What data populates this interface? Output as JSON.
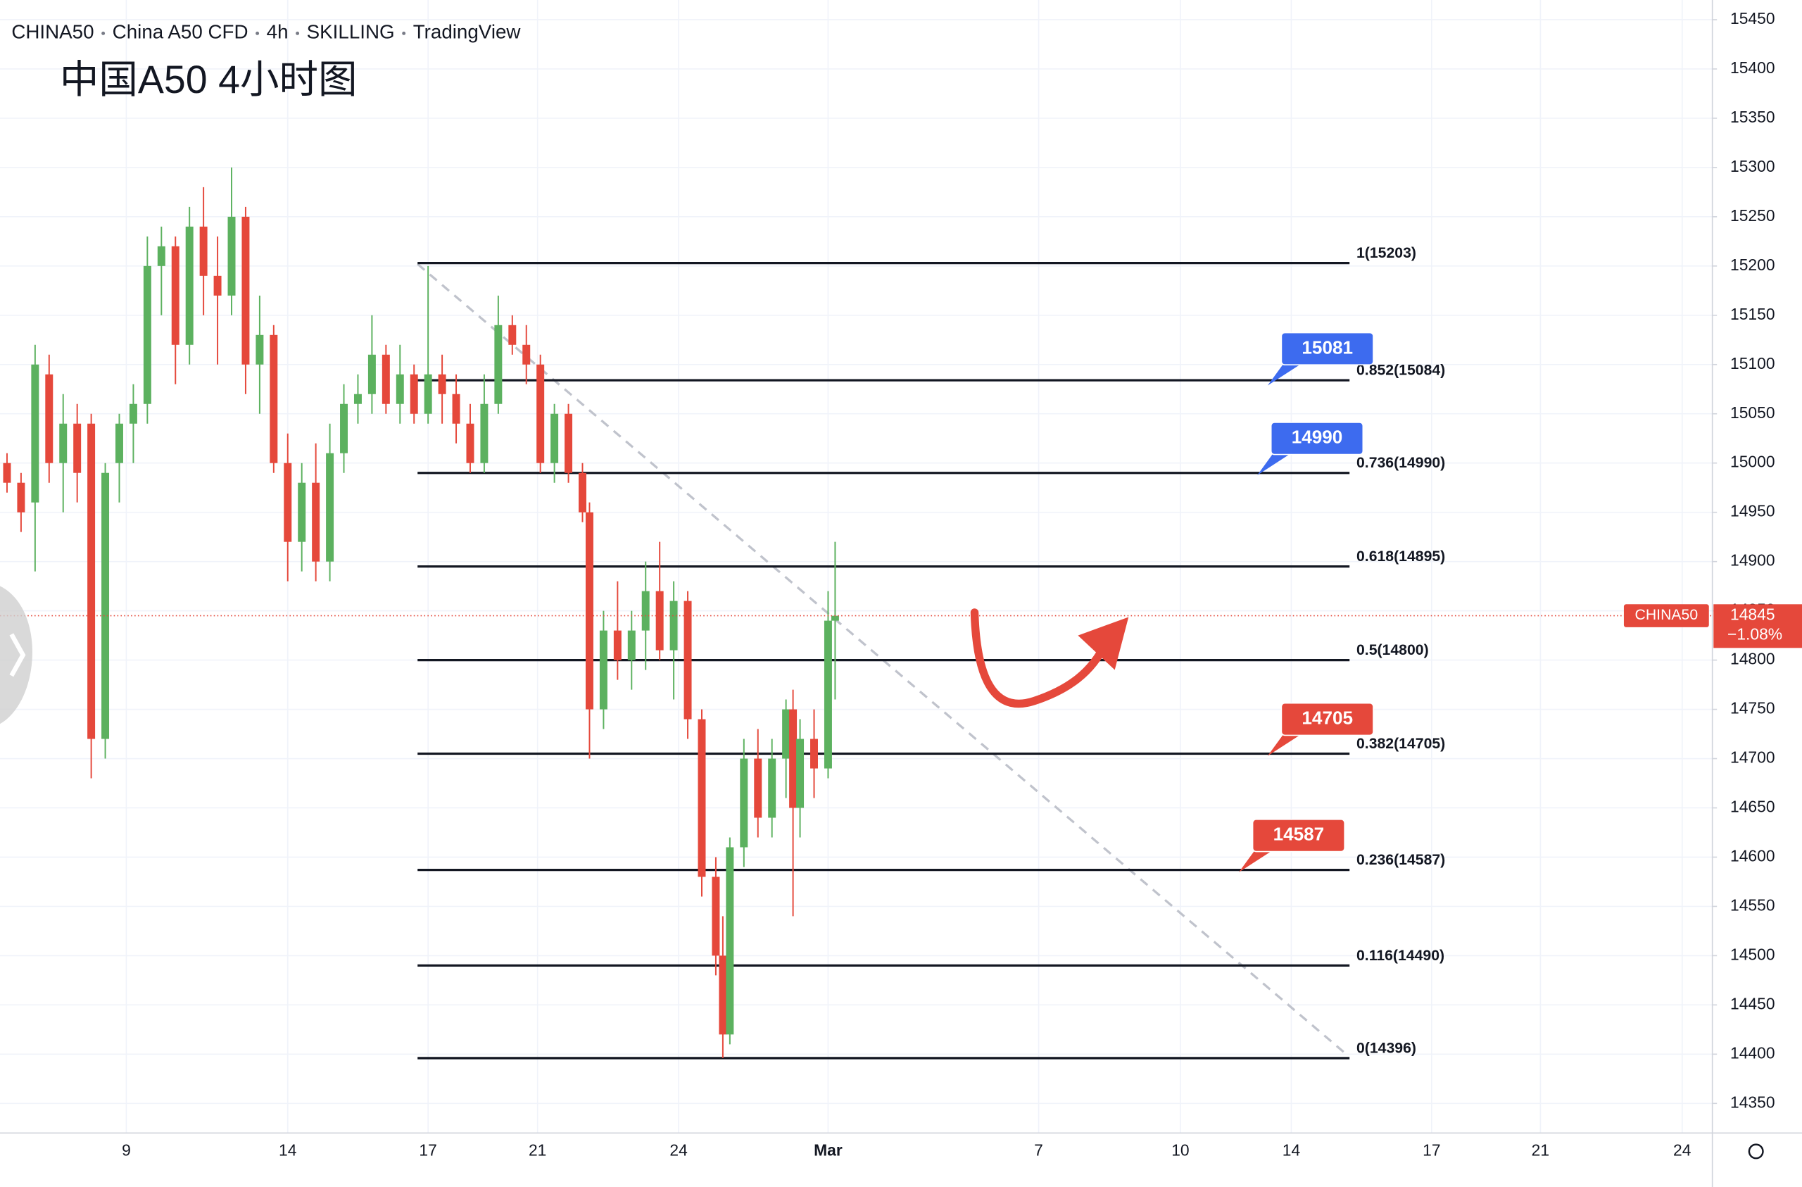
{
  "chart_data": {
    "type": "candlestick",
    "header": [
      "CHINA50",
      "China A50 CFD",
      "4h",
      "SKILLING",
      "TradingView"
    ],
    "title": "中国A50 4小时图",
    "symbol": "CHINA50",
    "last_price": 14845,
    "change_label": "−1.08%",
    "up_color": "#5cb15f",
    "down_color": "#e5483b",
    "xlim": [
      0,
      244
    ],
    "xticks": [
      {
        "value": 18,
        "label": "9"
      },
      {
        "value": 41,
        "label": "14"
      },
      {
        "value": 61,
        "label": "17"
      },
      {
        "value": 76.6,
        "label": "21"
      },
      {
        "value": 96.7,
        "label": "24"
      },
      {
        "value": 118,
        "label": "Mar"
      },
      {
        "value": 148,
        "label": "7"
      },
      {
        "value": 168.2,
        "label": "10"
      },
      {
        "value": 184,
        "label": "14"
      },
      {
        "value": 204,
        "label": "17"
      },
      {
        "value": 219.5,
        "label": "21"
      },
      {
        "value": 239.7,
        "label": "24"
      }
    ],
    "ylim": [
      14320,
      15470
    ],
    "yticks": [
      14350,
      14400,
      14450,
      14500,
      14550,
      14600,
      14650,
      14700,
      14750,
      14800,
      14850,
      14900,
      14950,
      15000,
      15050,
      15100,
      15150,
      15200,
      15250,
      15300,
      15350,
      15400,
      15450
    ],
    "grid": true,
    "x": [
      1,
      3,
      5,
      7,
      9,
      11,
      13,
      15,
      17,
      19,
      21,
      23,
      25,
      27,
      29,
      31,
      33,
      35,
      37,
      39,
      41,
      43,
      45,
      47,
      49,
      51,
      53,
      55,
      57,
      59,
      61,
      63,
      65,
      67,
      69,
      71,
      73,
      75,
      77,
      79,
      81,
      83,
      84,
      86,
      88,
      90,
      92,
      94,
      96,
      98,
      100,
      102,
      103,
      104,
      106,
      108,
      110,
      112,
      113,
      114,
      116,
      118,
      119
    ],
    "open": [
      15000,
      14980,
      14960,
      15090,
      15000,
      15040,
      15040,
      14720,
      15000,
      15040,
      15060,
      15200,
      15220,
      15120,
      15240,
      15190,
      15170,
      15250,
      15100,
      15130,
      15000,
      14920,
      14980,
      14900,
      15010,
      15060,
      15070,
      15110,
      15060,
      15090,
      15050,
      15090,
      15070,
      15040,
      15000,
      15060,
      15140,
      15120,
      15100,
      15000,
      15050,
      14990,
      14950,
      14750,
      14830,
      14800,
      14830,
      14870,
      14810,
      14860,
      14740,
      14580,
      14500,
      14420,
      14610,
      14700,
      14640,
      14700,
      14750,
      14650,
      14720,
      14690,
      14840
    ],
    "high": [
      15010,
      14990,
      15120,
      15110,
      15070,
      15060,
      15050,
      15000,
      15050,
      15080,
      15230,
      15240,
      15230,
      15260,
      15280,
      15230,
      15300,
      15260,
      15170,
      15140,
      15030,
      15000,
      15020,
      15040,
      15080,
      15090,
      15150,
      15120,
      15120,
      15100,
      15200,
      15110,
      15090,
      15060,
      15090,
      15170,
      15150,
      15140,
      15110,
      15060,
      15060,
      15000,
      14960,
      14850,
      14880,
      14850,
      14900,
      14920,
      14880,
      14870,
      14750,
      14600,
      14540,
      14620,
      14720,
      14730,
      14720,
      14760,
      14770,
      14740,
      14750,
      14870,
      14920
    ],
    "low": [
      14970,
      14930,
      14890,
      14980,
      14950,
      14960,
      14680,
      14700,
      14960,
      15000,
      15040,
      15150,
      15080,
      15100,
      15150,
      15100,
      15150,
      15070,
      15050,
      14990,
      14880,
      14890,
      14880,
      14880,
      14990,
      15040,
      15050,
      15050,
      15040,
      15040,
      15040,
      15040,
      15020,
      14990,
      14990,
      15050,
      15110,
      15080,
      14990,
      14980,
      14980,
      14940,
      14700,
      14730,
      14780,
      14770,
      14790,
      14800,
      14760,
      14720,
      14560,
      14480,
      14396,
      14410,
      14590,
      14620,
      14620,
      14660,
      14540,
      14620,
      14660,
      14680,
      14760
    ],
    "close": [
      14980,
      14950,
      15100,
      15000,
      15040,
      14990,
      14720,
      14990,
      15040,
      15060,
      15200,
      15220,
      15120,
      15240,
      15190,
      15170,
      15250,
      15100,
      15130,
      15000,
      14920,
      14980,
      14900,
      15010,
      15060,
      15070,
      15110,
      15060,
      15090,
      15050,
      15090,
      15070,
      15040,
      15000,
      15060,
      15140,
      15120,
      15100,
      15000,
      15050,
      14990,
      14950,
      14750,
      14830,
      14800,
      14830,
      14870,
      14810,
      14860,
      14740,
      14580,
      14500,
      14420,
      14610,
      14700,
      14640,
      14700,
      14750,
      14650,
      14720,
      14690,
      14840,
      14845
    ],
    "fib_start": 59.5,
    "fib_end": 192.3,
    "levels": [
      {
        "label": "1(15203)",
        "value": 15203
      },
      {
        "label": "0.852(15084)",
        "value": 15084
      },
      {
        "label": "0.736(14990)",
        "value": 14990
      },
      {
        "label": "0.618(14895)",
        "value": 14895
      },
      {
        "label": "0.5(14800)",
        "value": 14800
      },
      {
        "label": "0.382(14705)",
        "value": 14705
      },
      {
        "label": "0.236(14587)",
        "value": 14587
      },
      {
        "label": "0.116(14490)",
        "value": 14490
      },
      {
        "label": "0(14396)",
        "value": 14396
      }
    ],
    "callouts": [
      {
        "value": 15081,
        "color": "#3d6bef"
      },
      {
        "value": 14990,
        "color": "#3d6bef"
      },
      {
        "value": 14705,
        "color": "#e5483b"
      },
      {
        "value": 14587,
        "color": "#e5483b"
      }
    ],
    "trendline": {
      "x": [
        59.5,
        192
      ],
      "y": [
        15202,
        14399
      ]
    }
  }
}
